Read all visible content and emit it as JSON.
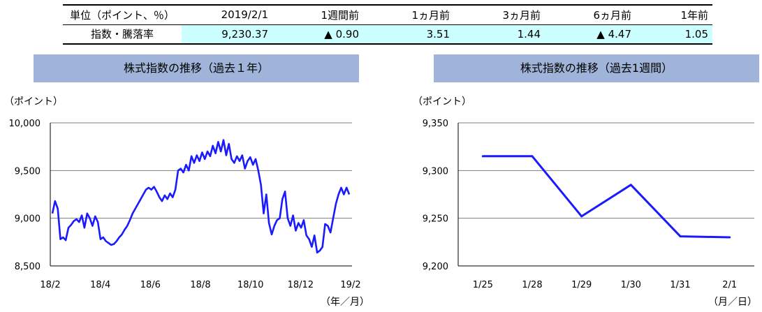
{
  "summary": {
    "headers": [
      "単位（ポイント、％）",
      "2019/2/1",
      "1週間前",
      "1ヵ月前",
      "3ヵ月前",
      "6ヵ月前",
      "1年前"
    ],
    "row_label": "指数・騰落率",
    "values": [
      "9,230.37",
      "▲ 0.90",
      "3.51",
      "1.44",
      "▲ 4.47",
      "1.05"
    ]
  },
  "colors": {
    "line": "#1a1aff",
    "title_band": "#9fb4d8",
    "value_bg": "#ccffff",
    "grid": "#7f7f7f"
  },
  "chart_data": [
    {
      "type": "line",
      "title": "株式指数の推移（過去１年）",
      "ylabel": "（ポイント）",
      "xlabel": "（年／月）",
      "ylim": [
        8500,
        10000
      ],
      "yticks": [
        8500,
        9000,
        9500,
        10000
      ],
      "ytick_labels": [
        "8,500",
        "9,000",
        "9,500",
        "10,000"
      ],
      "xtick_labels": [
        "18/2",
        "18/4",
        "18/6",
        "18/8",
        "18/10",
        "18/12",
        "19/2"
      ],
      "series": [
        {
          "values": [
            [
              0,
              9050
            ],
            [
              1,
              9180
            ],
            [
              2,
              9100
            ],
            [
              3,
              8780
            ],
            [
              4,
              8800
            ],
            [
              5,
              8770
            ],
            [
              6,
              8900
            ],
            [
              7,
              8930
            ],
            [
              8,
              8970
            ],
            [
              9,
              8990
            ],
            [
              10,
              8960
            ],
            [
              11,
              9030
            ],
            [
              12,
              8900
            ],
            [
              13,
              9050
            ],
            [
              14,
              9000
            ],
            [
              15,
              8920
            ],
            [
              16,
              9020
            ],
            [
              17,
              8960
            ],
            [
              18,
              8780
            ],
            [
              19,
              8800
            ],
            [
              20,
              8760
            ],
            [
              21,
              8740
            ],
            [
              22,
              8720
            ],
            [
              23,
              8730
            ],
            [
              24,
              8760
            ],
            [
              25,
              8800
            ],
            [
              26,
              8830
            ],
            [
              27,
              8880
            ],
            [
              28,
              8920
            ],
            [
              29,
              8980
            ],
            [
              30,
              9050
            ],
            [
              31,
              9100
            ],
            [
              32,
              9150
            ],
            [
              33,
              9200
            ],
            [
              34,
              9250
            ],
            [
              35,
              9300
            ],
            [
              36,
              9320
            ],
            [
              37,
              9300
            ],
            [
              38,
              9330
            ],
            [
              39,
              9280
            ],
            [
              40,
              9220
            ],
            [
              41,
              9180
            ],
            [
              42,
              9240
            ],
            [
              43,
              9200
            ],
            [
              44,
              9260
            ],
            [
              45,
              9220
            ],
            [
              46,
              9300
            ],
            [
              47,
              9500
            ],
            [
              48,
              9520
            ],
            [
              49,
              9480
            ],
            [
              50,
              9560
            ],
            [
              51,
              9500
            ],
            [
              52,
              9650
            ],
            [
              53,
              9580
            ],
            [
              54,
              9660
            ],
            [
              55,
              9600
            ],
            [
              56,
              9690
            ],
            [
              57,
              9620
            ],
            [
              58,
              9700
            ],
            [
              59,
              9650
            ],
            [
              60,
              9760
            ],
            [
              61,
              9680
            ],
            [
              62,
              9800
            ],
            [
              63,
              9700
            ],
            [
              64,
              9820
            ],
            [
              65,
              9660
            ],
            [
              66,
              9780
            ],
            [
              67,
              9620
            ],
            [
              68,
              9580
            ],
            [
              69,
              9650
            ],
            [
              70,
              9600
            ],
            [
              71,
              9660
            ],
            [
              72,
              9520
            ],
            [
              73,
              9600
            ],
            [
              74,
              9640
            ],
            [
              75,
              9560
            ],
            [
              76,
              9620
            ],
            [
              77,
              9500
            ],
            [
              78,
              9350
            ],
            [
              79,
              9050
            ],
            [
              80,
              9250
            ],
            [
              81,
              8950
            ],
            [
              82,
              8830
            ],
            [
              83,
              8920
            ],
            [
              84,
              8980
            ],
            [
              85,
              9000
            ],
            [
              86,
              9200
            ],
            [
              87,
              9280
            ],
            [
              88,
              9000
            ],
            [
              89,
              8920
            ],
            [
              90,
              9030
            ],
            [
              91,
              8870
            ],
            [
              92,
              8950
            ],
            [
              93,
              8900
            ],
            [
              94,
              8980
            ],
            [
              95,
              8820
            ],
            [
              96,
              8780
            ],
            [
              97,
              8700
            ],
            [
              98,
              8820
            ],
            [
              99,
              8640
            ],
            [
              100,
              8660
            ],
            [
              101,
              8700
            ],
            [
              102,
              8940
            ],
            [
              103,
              8920
            ],
            [
              104,
              8850
            ],
            [
              105,
              9000
            ],
            [
              106,
              9150
            ],
            [
              107,
              9250
            ],
            [
              108,
              9320
            ],
            [
              109,
              9250
            ],
            [
              110,
              9320
            ],
            [
              111,
              9250
            ]
          ]
        }
      ]
    },
    {
      "type": "line",
      "title": "株式指数の推移（過去1週間）",
      "ylabel": "（ポイント）",
      "xlabel": "（月／日）",
      "ylim": [
        9200,
        9350
      ],
      "yticks": [
        9200,
        9250,
        9300,
        9350
      ],
      "ytick_labels": [
        "9,200",
        "9,250",
        "9,300",
        "9,350"
      ],
      "categories": [
        "1/25",
        "1/28",
        "1/29",
        "1/30",
        "1/31",
        "2/1"
      ],
      "series": [
        {
          "values": [
            9315,
            9315,
            9252,
            9285,
            9231,
            9230
          ]
        }
      ]
    }
  ]
}
